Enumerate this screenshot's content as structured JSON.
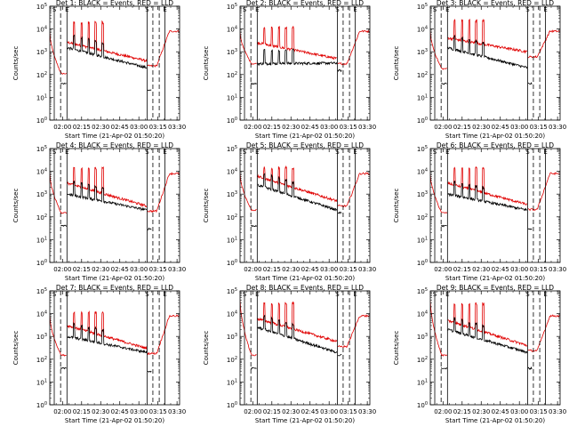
{
  "colors": {
    "events": "#000000",
    "lld": "#e00000",
    "axes": "#000000",
    "background": "#ffffff"
  },
  "marker_labels": [
    "S",
    "E"
  ],
  "panels": [
    {
      "title": "Det 1: BLACK = Events, RED = LLD",
      "ylabel": "Counts/sec",
      "xlabel": "Start Time (21-Apr-02 01:50:20)"
    },
    {
      "title": "Det 2: BLACK = Events, RED = LLD",
      "ylabel": "Counts/sec",
      "xlabel": "Start Time (21-Apr-02 01:50:20)"
    },
    {
      "title": "Det 3: BLACK = Events, RED = LLD",
      "ylabel": "Counts/sec",
      "xlabel": "Start Time (21-Apr-02 01:50:20)"
    },
    {
      "title": "Det 4: BLACK = Events, RED = LLD",
      "ylabel": "Counts/sec",
      "xlabel": "Start Time (21-Apr-02 01:50:20)"
    },
    {
      "title": "Det 5: BLACK = Events, RED = LLD",
      "ylabel": "Counts/sec",
      "xlabel": "Start Time (21-Apr-02 01:50:20)"
    },
    {
      "title": "Det 6: BLACK = Events, RED = LLD",
      "ylabel": "Counts/sec",
      "xlabel": "Start Time (21-Apr-02 01:50:20)"
    },
    {
      "title": "Det 7: BLACK = Events, RED = LLD",
      "ylabel": "Counts/sec",
      "xlabel": "Start Time (21-Apr-02 01:50:20)"
    },
    {
      "title": "Det 8: BLACK = Events, RED = LLD",
      "ylabel": "Counts/sec",
      "xlabel": "Start Time (21-Apr-02 01:50:20)"
    },
    {
      "title": "Det 9: BLACK = Events, RED = LLD",
      "ylabel": "Counts/sec",
      "xlabel": "Start Time (21-Apr-02 01:50:20)"
    }
  ],
  "chart_data": {
    "type": "line",
    "layout": "3x3 grid of detector panels",
    "scale": "log-y",
    "xlim_minutes_after_start": [
      0,
      102
    ],
    "ylim": [
      1,
      100000
    ],
    "x_ticks": [
      {
        "label": "02:00",
        "value": 10
      },
      {
        "label": "02:15",
        "value": 25
      },
      {
        "label": "02:30",
        "value": 40
      },
      {
        "label": "02:45",
        "value": 55
      },
      {
        "label": "03:00",
        "value": 70
      },
      {
        "label": "03:15",
        "value": 85
      },
      {
        "label": "03:30",
        "value": 100
      }
    ],
    "y_ticks": [
      {
        "label": "10^0",
        "value": 1
      },
      {
        "label": "10^1",
        "value": 10
      },
      {
        "label": "10^2",
        "value": 100
      },
      {
        "label": "10^3",
        "value": 1000
      },
      {
        "label": "10^4",
        "value": 10000
      },
      {
        "label": "10^5",
        "value": 100000
      }
    ],
    "vertical_markers": [
      {
        "value": 3.5,
        "style": "solid",
        "label": "S"
      },
      {
        "value": 8.5,
        "style": "dashed",
        "label": ""
      },
      {
        "value": 13.5,
        "style": "solid",
        "label": "E"
      },
      {
        "value": 76.5,
        "style": "solid",
        "label": "S"
      },
      {
        "value": 81.0,
        "style": "dashed",
        "label": ""
      },
      {
        "value": 86.0,
        "style": "dashed",
        "label": ""
      },
      {
        "value": 90.5,
        "style": "solid",
        "label": "E"
      }
    ],
    "data_segments_minutes": [
      [
        0,
        13.5
      ],
      [
        13.5,
        76.5
      ],
      [
        76.5,
        102
      ]
    ],
    "spike_times": [
      18.5,
      24.5,
      30.0,
      35.5,
      41.0
    ],
    "series": [
      {
        "name": "Events",
        "color": "#000000"
      },
      {
        "name": "LLD",
        "color": "#e00000"
      }
    ],
    "panels": [
      {
        "detector": 1,
        "events_start": 1500,
        "events_end": 200,
        "lld_start": 2600,
        "lld_end": 400,
        "spike_peak": 20000,
        "pre_start": 900,
        "pre_end": 110,
        "post_lld_peak": 8000,
        "post_events": 20
      },
      {
        "detector": 2,
        "events_start": 300,
        "events_end": 320,
        "lld_start": 2500,
        "lld_end": 500,
        "spike_peak": 12000,
        "pre_start": 900,
        "pre_end": 300,
        "post_lld_peak": 8000,
        "post_events": 150
      },
      {
        "detector": 3,
        "events_start": 1500,
        "events_end": 200,
        "lld_start": 4000,
        "lld_end": 1000,
        "spike_peak": 25000,
        "pre_start": 1000,
        "pre_end": 180,
        "post_lld_peak": 8000,
        "post_events": 40
      },
      {
        "detector": 4,
        "events_start": 1000,
        "events_end": 200,
        "lld_start": 3000,
        "lld_end": 300,
        "spike_peak": 15000,
        "pre_start": 1000,
        "pre_end": 150,
        "post_lld_peak": 8000,
        "post_events": 30
      },
      {
        "detector": 5,
        "events_start": 2500,
        "events_end": 200,
        "lld_start": 6000,
        "lld_end": 500,
        "spike_peak": 15000,
        "pre_start": 1000,
        "pre_end": 200,
        "post_lld_peak": 8000,
        "post_events": 150
      },
      {
        "detector": 6,
        "events_start": 1000,
        "events_end": 200,
        "lld_start": 3000,
        "lld_end": 350,
        "spike_peak": 15000,
        "pre_start": 1000,
        "pre_end": 150,
        "post_lld_peak": 8000,
        "post_events": 30
      },
      {
        "detector": 7,
        "events_start": 1000,
        "events_end": 200,
        "lld_start": 3000,
        "lld_end": 300,
        "spike_peak": 12000,
        "pre_start": 1000,
        "pre_end": 150,
        "post_lld_peak": 8000,
        "post_events": 30
      },
      {
        "detector": 8,
        "events_start": 2500,
        "events_end": 200,
        "lld_start": 6000,
        "lld_end": 600,
        "spike_peak": 30000,
        "pre_start": 5000,
        "pre_end": 150,
        "post_lld_peak": 8000,
        "post_events": 150
      },
      {
        "detector": 9,
        "events_start": 2000,
        "events_end": 200,
        "lld_start": 5000,
        "lld_end": 400,
        "spike_peak": 30000,
        "pre_start": 5000,
        "pre_end": 150,
        "post_lld_peak": 8000,
        "post_events": 40
      }
    ]
  }
}
